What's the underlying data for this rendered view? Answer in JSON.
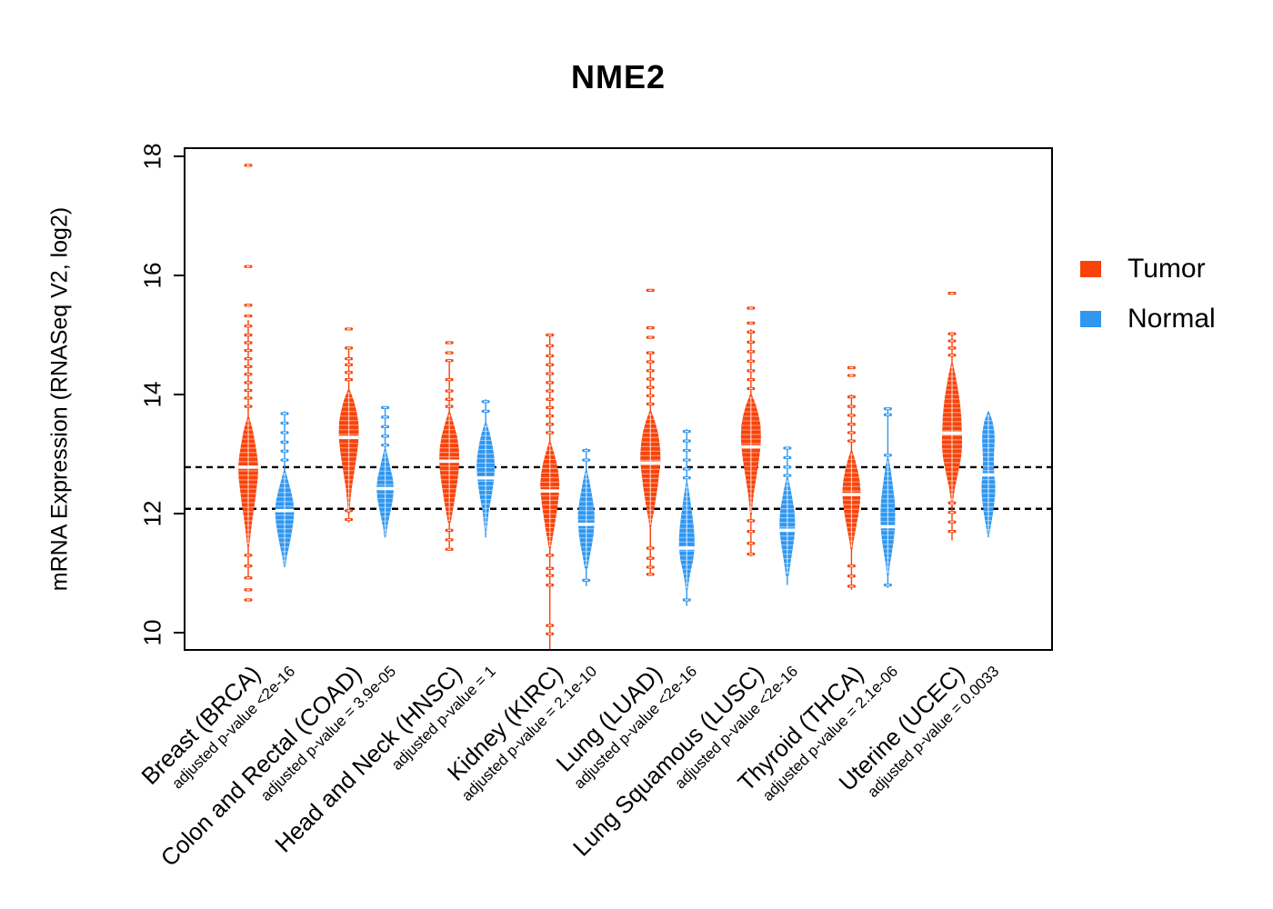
{
  "legend": {
    "items": [
      {
        "label": "Tumor",
        "color": "#F8430A"
      },
      {
        "label": "Normal",
        "color": "#2F97F0"
      }
    ]
  },
  "chart_data": {
    "type": "violin",
    "title": "NME2",
    "ylabel": "mRNA Expression (RNASeq V2, log2)",
    "ylim": [
      9.66,
      18.14
    ],
    "yticks": [
      10,
      12,
      14,
      16,
      18
    ],
    "ytick_labels": [
      "10",
      "12",
      "14",
      "16",
      "18"
    ],
    "grid": false,
    "legend_position": "right",
    "reference_lines": [
      12.78,
      12.08
    ],
    "colors": {
      "tumor": "#F8430A",
      "normal": "#2F97F0"
    },
    "groups": [
      {
        "cohort": "Breast (BRCA)",
        "pvalue_label": "adjusted p-value <2e-16",
        "tumor": {
          "median": 12.78,
          "body": [
            [
              13.62,
              1
            ],
            [
              13.4,
              5
            ],
            [
              13.15,
              8
            ],
            [
              12.95,
              10
            ],
            [
              12.78,
              11
            ],
            [
              12.6,
              10.5
            ],
            [
              12.4,
              9
            ],
            [
              12.15,
              7
            ],
            [
              11.9,
              4.5
            ],
            [
              11.65,
              2.5
            ],
            [
              11.45,
              1
            ]
          ],
          "stem": [
            10.9,
            15.25
          ],
          "outliers": [
            17.85,
            16.15,
            15.5,
            15.32,
            15.15,
            15.0,
            14.87,
            14.74,
            14.6,
            14.47,
            14.34,
            14.2,
            14.07,
            13.94,
            13.8,
            11.3,
            11.12,
            10.92,
            10.72,
            10.55
          ]
        },
        "normal": {
          "median": 12.05,
          "body": [
            [
              12.72,
              1
            ],
            [
              12.55,
              4
            ],
            [
              12.38,
              7
            ],
            [
              12.2,
              9.5
            ],
            [
              12.02,
              10.5
            ],
            [
              11.85,
              9.5
            ],
            [
              11.65,
              7.5
            ],
            [
              11.45,
              5
            ],
            [
              11.28,
              2.5
            ],
            [
              11.12,
              1
            ]
          ],
          "stem": [
            11.1,
            13.72
          ],
          "outliers": [
            13.68,
            13.52,
            13.36,
            13.2,
            13.05,
            12.9
          ]
        }
      },
      {
        "cohort": "Colon and Rectal (COAD)",
        "pvalue_label": "adjusted p-value = 3.9e-05",
        "tumor": {
          "median": 13.28,
          "body": [
            [
              14.08,
              1
            ],
            [
              13.9,
              5.5
            ],
            [
              13.72,
              8.5
            ],
            [
              13.55,
              10.5
            ],
            [
              13.38,
              11
            ],
            [
              13.2,
              10.5
            ],
            [
              13.0,
              9
            ],
            [
              12.8,
              7
            ],
            [
              12.6,
              5
            ],
            [
              12.4,
              3
            ],
            [
              12.18,
              1.5
            ],
            [
              12.0,
              1
            ]
          ],
          "stem": [
            11.85,
            14.8
          ],
          "outliers": [
            15.1,
            14.78,
            14.6,
            14.5,
            14.37,
            14.25,
            12.05,
            11.9
          ]
        },
        "normal": {
          "median": 12.42,
          "body": [
            [
              13.08,
              1
            ],
            [
              12.92,
              3.5
            ],
            [
              12.75,
              6
            ],
            [
              12.58,
              8.5
            ],
            [
              12.42,
              9.5
            ],
            [
              12.25,
              8.5
            ],
            [
              12.08,
              6.5
            ],
            [
              11.9,
              4
            ],
            [
              11.75,
              2
            ],
            [
              11.62,
              1
            ]
          ],
          "stem": [
            11.6,
            13.8
          ],
          "outliers": [
            13.78,
            13.62,
            13.46,
            13.3,
            13.15
          ]
        }
      },
      {
        "cohort": "Head and Neck (HNSC)",
        "pvalue_label": "adjusted p-value = 1",
        "tumor": {
          "median": 12.88,
          "body": [
            [
              13.7,
              1
            ],
            [
              13.5,
              5
            ],
            [
              13.3,
              8.5
            ],
            [
              13.1,
              10.5
            ],
            [
              12.92,
              11
            ],
            [
              12.75,
              10.5
            ],
            [
              12.55,
              9
            ],
            [
              12.35,
              7
            ],
            [
              12.15,
              5
            ],
            [
              11.98,
              3
            ],
            [
              11.85,
              1.5
            ]
          ],
          "stem": [
            11.38,
            14.6
          ],
          "outliers": [
            14.87,
            14.7,
            14.57,
            14.25,
            14.06,
            13.92,
            13.8,
            11.72,
            11.56,
            11.4
          ]
        },
        "normal": {
          "median": 12.6,
          "body": [
            [
              13.52,
              1
            ],
            [
              13.35,
              4.5
            ],
            [
              13.18,
              7
            ],
            [
              13.0,
              9
            ],
            [
              12.82,
              10
            ],
            [
              12.65,
              9.5
            ],
            [
              12.45,
              8
            ],
            [
              12.25,
              6
            ],
            [
              12.05,
              3.5
            ],
            [
              11.85,
              2
            ],
            [
              11.7,
              1
            ]
          ],
          "stem": [
            11.6,
            13.92
          ],
          "outliers": [
            13.88,
            13.72
          ]
        }
      },
      {
        "cohort": "Kidney (KIRC)",
        "pvalue_label": "adjusted p-value = 2.1e-10",
        "tumor": {
          "median": 12.38,
          "body": [
            [
              13.2,
              1
            ],
            [
              13.02,
              4.5
            ],
            [
              12.85,
              7.5
            ],
            [
              12.68,
              9.5
            ],
            [
              12.5,
              10.5
            ],
            [
              12.32,
              10
            ],
            [
              12.12,
              8.5
            ],
            [
              11.92,
              6.5
            ],
            [
              11.72,
              4.5
            ],
            [
              11.55,
              2.5
            ],
            [
              11.42,
              1
            ]
          ],
          "stem": [
            9.7,
            15.02
          ],
          "outliers": [
            15.0,
            14.82,
            14.65,
            14.5,
            14.35,
            14.2,
            14.06,
            13.92,
            13.78,
            13.64,
            13.5,
            13.36,
            11.3,
            11.08,
            10.96,
            10.8,
            10.12,
            9.98
          ]
        },
        "normal": {
          "median": 11.82,
          "body": [
            [
              12.72,
              1
            ],
            [
              12.55,
              3.5
            ],
            [
              12.38,
              5.5
            ],
            [
              12.2,
              7.5
            ],
            [
              12.02,
              9
            ],
            [
              11.85,
              9
            ],
            [
              11.65,
              8
            ],
            [
              11.45,
              6
            ],
            [
              11.25,
              3.5
            ],
            [
              11.08,
              1.5
            ]
          ],
          "stem": [
            10.78,
            13.1
          ],
          "outliers": [
            13.06,
            12.9,
            10.88
          ]
        }
      },
      {
        "cohort": "Lung (LUAD)",
        "pvalue_label": "adjusted p-value <2e-16",
        "tumor": {
          "median": 12.85,
          "body": [
            [
              13.72,
              1
            ],
            [
              13.55,
              5
            ],
            [
              13.38,
              8
            ],
            [
              13.2,
              10
            ],
            [
              13.02,
              11
            ],
            [
              12.85,
              11
            ],
            [
              12.65,
              9.5
            ],
            [
              12.45,
              8
            ],
            [
              12.25,
              6
            ],
            [
              12.05,
              4
            ],
            [
              11.9,
              2
            ],
            [
              11.78,
              1
            ]
          ],
          "stem": [
            10.95,
            14.72
          ],
          "outliers": [
            15.75,
            15.12,
            14.96,
            14.7,
            14.55,
            14.4,
            14.26,
            14.12,
            13.98,
            13.84,
            11.42,
            11.25,
            11.1,
            10.98
          ]
        },
        "normal": {
          "median": 11.42,
          "body": [
            [
              12.5,
              1
            ],
            [
              12.32,
              3
            ],
            [
              12.15,
              4.5
            ],
            [
              11.98,
              6
            ],
            [
              11.8,
              7.5
            ],
            [
              11.6,
              8.5
            ],
            [
              11.42,
              8.5
            ],
            [
              11.22,
              7
            ],
            [
              11.05,
              4.5
            ],
            [
              10.88,
              2.5
            ],
            [
              10.72,
              1
            ]
          ],
          "stem": [
            10.45,
            13.42
          ],
          "outliers": [
            13.38,
            13.22,
            13.06,
            12.9,
            12.75,
            12.6,
            10.55
          ]
        }
      },
      {
        "cohort": "Lung Squamous (LUSC)",
        "pvalue_label": "adjusted p-value <2e-16",
        "tumor": {
          "median": 13.12,
          "body": [
            [
              14.0,
              1
            ],
            [
              13.82,
              5.5
            ],
            [
              13.65,
              8.5
            ],
            [
              13.48,
              10.5
            ],
            [
              13.3,
              11
            ],
            [
              13.12,
              10.5
            ],
            [
              12.92,
              9
            ],
            [
              12.72,
              7
            ],
            [
              12.52,
              5
            ],
            [
              12.32,
              3
            ],
            [
              12.12,
              1.5
            ],
            [
              11.98,
              1
            ]
          ],
          "stem": [
            11.28,
            15.1
          ],
          "outliers": [
            15.45,
            15.2,
            15.05,
            14.88,
            14.72,
            14.56,
            14.4,
            14.25,
            14.1,
            11.88,
            11.7,
            11.5,
            11.32
          ]
        },
        "normal": {
          "median": 11.72,
          "body": [
            [
              12.6,
              1
            ],
            [
              12.42,
              3.5
            ],
            [
              12.25,
              5.5
            ],
            [
              12.08,
              7.5
            ],
            [
              11.9,
              8.5
            ],
            [
              11.72,
              8.5
            ],
            [
              11.52,
              7
            ],
            [
              11.32,
              5
            ],
            [
              11.12,
              3
            ],
            [
              10.95,
              1.5
            ]
          ],
          "stem": [
            10.8,
            13.12
          ],
          "outliers": [
            13.1,
            12.94,
            12.78,
            12.64
          ]
        }
      },
      {
        "cohort": "Thyroid (THCA)",
        "pvalue_label": "adjusted p-value = 2.1e-06",
        "tumor": {
          "median": 12.32,
          "body": [
            [
              13.05,
              1
            ],
            [
              12.9,
              4
            ],
            [
              12.72,
              7
            ],
            [
              12.55,
              9
            ],
            [
              12.38,
              10
            ],
            [
              12.2,
              9.5
            ],
            [
              12.02,
              8
            ],
            [
              11.85,
              6
            ],
            [
              11.68,
              4
            ],
            [
              11.52,
              2
            ],
            [
              11.4,
              1
            ]
          ],
          "stem": [
            10.72,
            14.0
          ],
          "outliers": [
            14.45,
            14.32,
            13.96,
            13.8,
            13.65,
            13.5,
            13.36,
            13.22,
            11.12,
            10.95,
            10.78
          ]
        },
        "normal": {
          "median": 11.78,
          "body": [
            [
              12.92,
              1
            ],
            [
              12.75,
              3
            ],
            [
              12.58,
              4.5
            ],
            [
              12.4,
              6
            ],
            [
              12.22,
              7.5
            ],
            [
              12.05,
              8
            ],
            [
              11.88,
              8
            ],
            [
              11.7,
              7.5
            ],
            [
              11.5,
              6
            ],
            [
              11.3,
              4
            ],
            [
              11.12,
              2
            ],
            [
              10.96,
              1
            ]
          ],
          "stem": [
            10.75,
            13.78
          ],
          "outliers": [
            13.76,
            13.66,
            12.98,
            10.8
          ]
        }
      },
      {
        "cohort": "Uterine (UCEC)",
        "pvalue_label": "adjusted p-value = 0.0033",
        "tumor": {
          "median": 13.35,
          "body": [
            [
              14.52,
              1
            ],
            [
              14.35,
              3.5
            ],
            [
              14.18,
              5.5
            ],
            [
              14.0,
              7.5
            ],
            [
              13.82,
              9
            ],
            [
              13.65,
              10
            ],
            [
              13.48,
              10.5
            ],
            [
              13.3,
              11
            ],
            [
              13.12,
              11
            ],
            [
              12.95,
              10
            ],
            [
              12.78,
              8
            ],
            [
              12.6,
              5.5
            ],
            [
              12.42,
              3
            ],
            [
              12.25,
              1.5
            ],
            [
              12.1,
              1
            ]
          ],
          "stem": [
            11.55,
            15.05
          ],
          "outliers": [
            15.7,
            15.02,
            14.9,
            14.78,
            14.66,
            12.18,
            12.02,
            11.86,
            11.7
          ]
        },
        "normal": {
          "median": 12.65,
          "body": [
            [
              13.7,
              1
            ],
            [
              13.55,
              4.5
            ],
            [
              13.38,
              6.5
            ],
            [
              13.25,
              7
            ],
            [
              13.1,
              6.5
            ],
            [
              12.95,
              6
            ],
            [
              12.8,
              6
            ],
            [
              12.65,
              6.5
            ],
            [
              12.5,
              7.5
            ],
            [
              12.35,
              7.5
            ],
            [
              12.18,
              6.5
            ],
            [
              12.0,
              5
            ],
            [
              11.82,
              3
            ],
            [
              11.65,
              1
            ]
          ],
          "stem": [
            11.6,
            13.72
          ],
          "outliers": []
        }
      }
    ]
  }
}
